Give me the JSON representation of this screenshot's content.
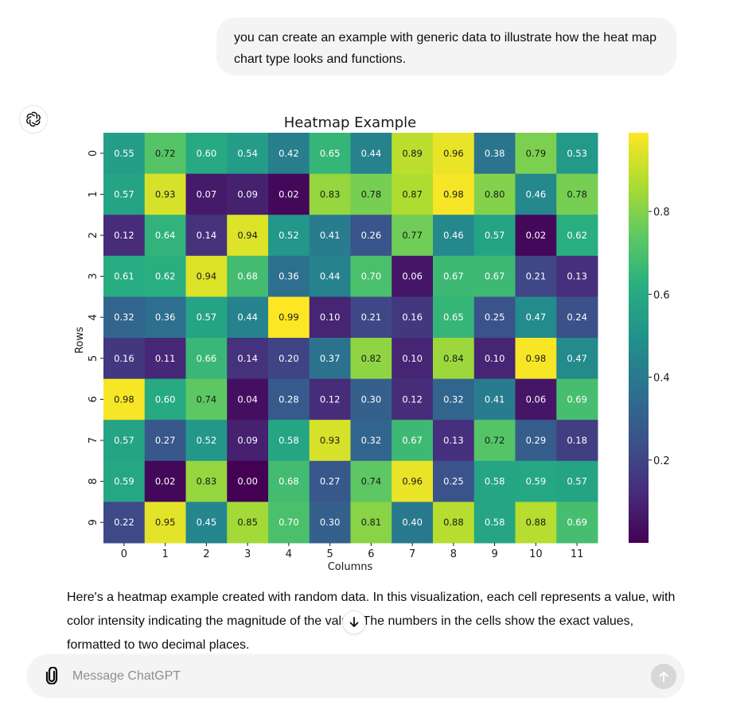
{
  "conversation": {
    "user_message": "you can create an example with generic data to illustrate how the heat map chart type looks and functions.",
    "assistant_message": "Here's a heatmap example created with random data. In this visualization, each cell represents a value, with color intensity indicating the magnitude of the value. The numbers in the cells show the exact values, formatted to two decimal places."
  },
  "composer": {
    "placeholder": "Message ChatGPT",
    "value": ""
  },
  "icons": {
    "avatar": "openai-logo-icon",
    "attach": "paperclip-icon",
    "send": "arrow-up-icon",
    "scroll": "arrow-down-icon"
  },
  "chart_data": {
    "type": "heatmap",
    "title": "Heatmap Example",
    "xlabel": "Columns",
    "ylabel": "Rows",
    "x_categories": [
      "0",
      "1",
      "2",
      "3",
      "4",
      "5",
      "6",
      "7",
      "8",
      "9",
      "10",
      "11"
    ],
    "y_categories": [
      "0",
      "1",
      "2",
      "3",
      "4",
      "5",
      "6",
      "7",
      "8",
      "9"
    ],
    "values": [
      [
        0.55,
        0.72,
        0.6,
        0.54,
        0.42,
        0.65,
        0.44,
        0.89,
        0.96,
        0.38,
        0.79,
        0.53
      ],
      [
        0.57,
        0.93,
        0.07,
        0.09,
        0.02,
        0.83,
        0.78,
        0.87,
        0.98,
        0.8,
        0.46,
        0.78
      ],
      [
        0.12,
        0.64,
        0.14,
        0.94,
        0.52,
        0.41,
        0.26,
        0.77,
        0.46,
        0.57,
        0.02,
        0.62
      ],
      [
        0.61,
        0.62,
        0.94,
        0.68,
        0.36,
        0.44,
        0.7,
        0.06,
        0.67,
        0.67,
        0.21,
        0.13
      ],
      [
        0.32,
        0.36,
        0.57,
        0.44,
        0.99,
        0.1,
        0.21,
        0.16,
        0.65,
        0.25,
        0.47,
        0.24
      ],
      [
        0.16,
        0.11,
        0.66,
        0.14,
        0.2,
        0.37,
        0.82,
        0.1,
        0.84,
        0.1,
        0.98,
        0.47
      ],
      [
        0.98,
        0.6,
        0.74,
        0.04,
        0.28,
        0.12,
        0.3,
        0.12,
        0.32,
        0.41,
        0.06,
        0.69
      ],
      [
        0.57,
        0.27,
        0.52,
        0.09,
        0.58,
        0.93,
        0.32,
        0.67,
        0.13,
        0.72,
        0.29,
        0.18
      ],
      [
        0.59,
        0.02,
        0.83,
        0.0,
        0.68,
        0.27,
        0.74,
        0.96,
        0.25,
        0.58,
        0.59,
        0.57
      ],
      [
        0.22,
        0.95,
        0.45,
        0.85,
        0.7,
        0.3,
        0.81,
        0.4,
        0.88,
        0.58,
        0.88,
        0.69
      ]
    ],
    "colormap": "viridis",
    "value_range": [
      0.0,
      0.99
    ],
    "colorbar_ticks": [
      0.2,
      0.4,
      0.6,
      0.8
    ],
    "colorbar_tick_labels": [
      "0.2",
      "0.4",
      "0.6",
      "0.8"
    ],
    "annotation_format": "2 decimals"
  }
}
